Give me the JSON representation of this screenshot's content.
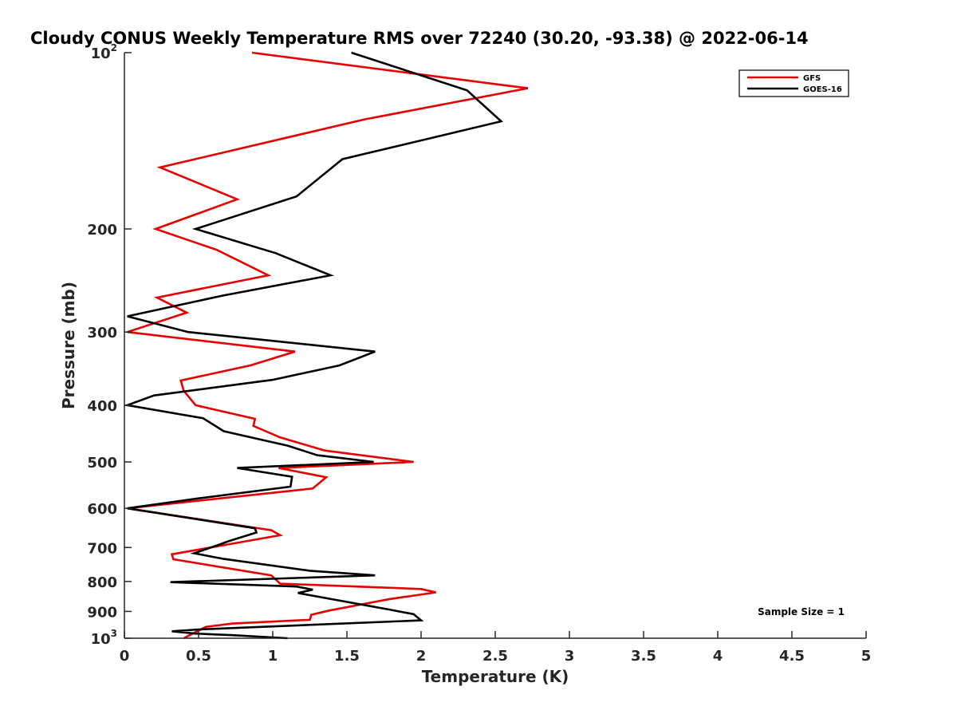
{
  "chart_data": {
    "type": "line",
    "title": "Cloudy CONUS Weekly Temperature RMS over 72240 (30.20, -93.38) @ 2022-06-14",
    "xlabel": "Temperature (K)",
    "ylabel": "Pressure (mb)",
    "xlim": [
      0,
      5
    ],
    "ylim": [
      100,
      1000
    ],
    "y_scale": "log",
    "y_reversed": true,
    "grid": false,
    "legend_position": "top-right",
    "x_ticks": [
      "0",
      "0.5",
      "1",
      "1.5",
      "2",
      "2.5",
      "3",
      "3.5",
      "4",
      "4.5",
      "5"
    ],
    "x_tick_values": [
      0,
      0.5,
      1,
      1.5,
      2,
      2.5,
      3,
      3.5,
      4,
      4.5,
      5
    ],
    "y_ticks": [
      {
        "value": 100,
        "base": "10",
        "exp": "2"
      },
      {
        "value": 200,
        "label": "200"
      },
      {
        "value": 300,
        "label": "300"
      },
      {
        "value": 400,
        "label": "400"
      },
      {
        "value": 500,
        "label": "500"
      },
      {
        "value": 600,
        "label": "600"
      },
      {
        "value": 700,
        "label": "700"
      },
      {
        "value": 800,
        "label": "800"
      },
      {
        "value": 900,
        "label": "900"
      },
      {
        "value": 1000,
        "base": "10",
        "exp": "3"
      }
    ],
    "series": [
      {
        "name": "GFS",
        "color": "#e60000",
        "points": [
          [
            0.86,
            100
          ],
          [
            2.72,
            115
          ],
          [
            1.62,
            130
          ],
          [
            0.24,
            157
          ],
          [
            0.76,
            178
          ],
          [
            0.21,
            200
          ],
          [
            0.62,
            217
          ],
          [
            0.97,
            240
          ],
          [
            0.22,
            262
          ],
          [
            0.42,
            278
          ],
          [
            0.02,
            300
          ],
          [
            1.15,
            324
          ],
          [
            0.85,
            342
          ],
          [
            0.38,
            363
          ],
          [
            0.4,
            378
          ],
          [
            0.48,
            400
          ],
          [
            0.88,
            422
          ],
          [
            0.87,
            434
          ],
          [
            1.05,
            454
          ],
          [
            1.35,
            478
          ],
          [
            1.95,
            500
          ],
          [
            1.04,
            512
          ],
          [
            1.36,
            531
          ],
          [
            1.27,
            555
          ],
          [
            0.02,
            600
          ],
          [
            0.99,
            654
          ],
          [
            1.05,
            667
          ],
          [
            0.32,
            719
          ],
          [
            0.33,
            733
          ],
          [
            0.99,
            781
          ],
          [
            1.05,
            807
          ],
          [
            2.0,
            824
          ],
          [
            2.1,
            835
          ],
          [
            1.78,
            858
          ],
          [
            1.38,
            897
          ],
          [
            1.26,
            912
          ],
          [
            1.25,
            930
          ],
          [
            0.73,
            944
          ],
          [
            0.55,
            956
          ],
          [
            0.4,
            1000
          ]
        ]
      },
      {
        "name": "GOES-16",
        "color": "#000000",
        "points": [
          [
            1.53,
            100
          ],
          [
            2.31,
            116
          ],
          [
            2.54,
            131
          ],
          [
            1.47,
            152
          ],
          [
            1.16,
            176
          ],
          [
            0.48,
            200
          ],
          [
            1.02,
            220
          ],
          [
            1.39,
            240
          ],
          [
            0.66,
            260
          ],
          [
            0.02,
            282
          ],
          [
            0.43,
            300
          ],
          [
            1.69,
            324
          ],
          [
            1.45,
            342
          ],
          [
            1.0,
            362
          ],
          [
            0.2,
            385
          ],
          [
            0.02,
            400
          ],
          [
            0.53,
            421
          ],
          [
            0.67,
            443
          ],
          [
            1.1,
            469
          ],
          [
            1.3,
            487
          ],
          [
            1.68,
            500
          ],
          [
            0.76,
            512
          ],
          [
            1.13,
            530
          ],
          [
            1.12,
            551
          ],
          [
            0.5,
            577
          ],
          [
            0.02,
            600
          ],
          [
            0.88,
            649
          ],
          [
            0.89,
            660
          ],
          [
            0.7,
            683
          ],
          [
            0.64,
            692
          ],
          [
            0.47,
            716
          ],
          [
            0.67,
            732
          ],
          [
            1.25,
            767
          ],
          [
            1.69,
            781
          ],
          [
            0.31,
            802
          ],
          [
            1.16,
            816
          ],
          [
            1.27,
            826
          ],
          [
            1.17,
            837
          ],
          [
            1.78,
            893
          ],
          [
            1.95,
            910
          ],
          [
            2.0,
            932
          ],
          [
            0.5,
            966
          ],
          [
            0.32,
            973
          ],
          [
            0.48,
            982
          ],
          [
            0.73,
            988
          ],
          [
            1.1,
            1000
          ]
        ]
      }
    ],
    "annotation": "Sample Size = 1"
  }
}
